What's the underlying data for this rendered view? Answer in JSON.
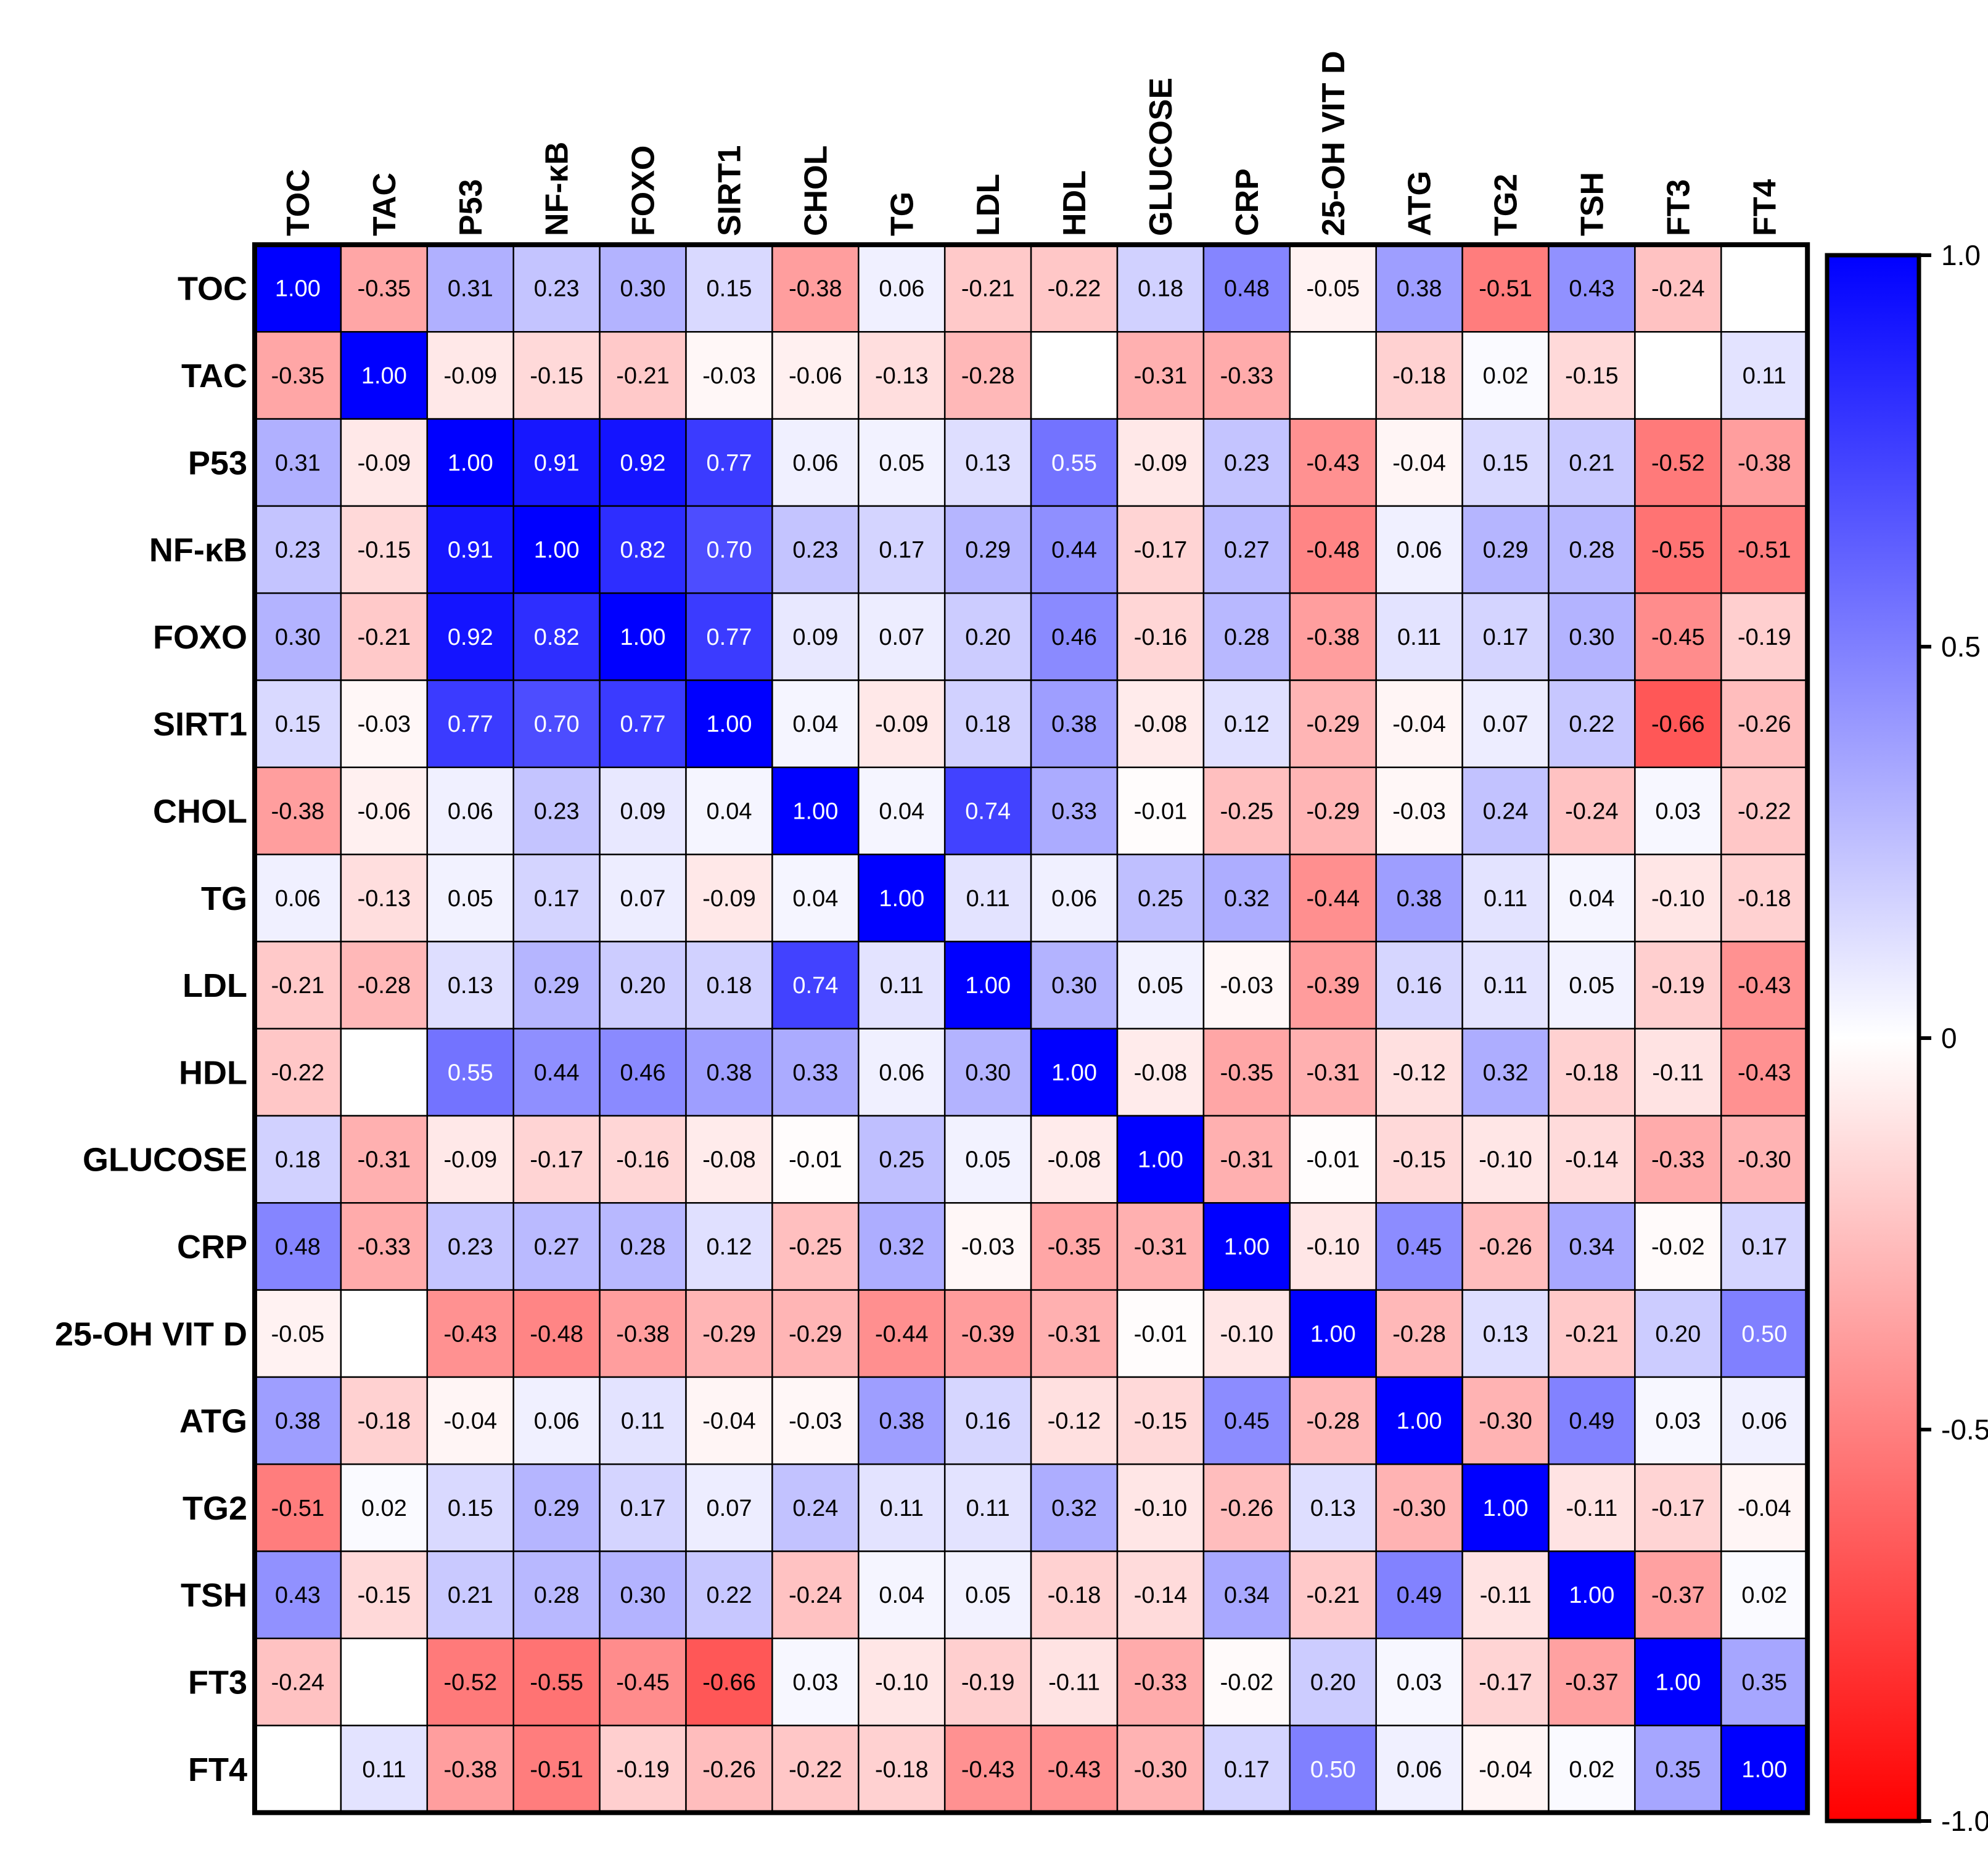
{
  "chart_data": {
    "type": "heatmap",
    "title": "",
    "columns": [
      "TOC",
      "TAC",
      "P53",
      "NF-κB",
      "FOXO",
      "SIRT1",
      "CHOL",
      "TG",
      "LDL",
      "HDL",
      "GLUCOSE",
      "CRP",
      "25-OH VIT D",
      "ATG",
      "TG2",
      "TSH",
      "FT3",
      "FT4"
    ],
    "rows": [
      "TOC",
      "TAC",
      "P53",
      "NF-κB",
      "FOXO",
      "SIRT1",
      "CHOL",
      "TG",
      "LDL",
      "HDL",
      "GLUCOSE",
      "CRP",
      "25-OH VIT D",
      "ATG",
      "TG2",
      "TSH",
      "FT3",
      "FT4"
    ],
    "values": [
      [
        "1.00",
        "-0.35",
        "0.31",
        "0.23",
        "0.30",
        "0.15",
        "-0.38",
        "0.06",
        "-0.21",
        "-0.22",
        "0.18",
        "0.48",
        "-0.05",
        "0.38",
        "-0.51",
        "0.43",
        "-0.24",
        ""
      ],
      [
        "-0.35",
        "1.00",
        "-0.09",
        "-0.15",
        "-0.21",
        "-0.03",
        "-0.06",
        "-0.13",
        "-0.28",
        "",
        "-0.31",
        "-0.33",
        "",
        "-0.18",
        "0.02",
        "-0.15",
        "",
        "0.11"
      ],
      [
        "0.31",
        "-0.09",
        "1.00",
        "0.91",
        "0.92",
        "0.77",
        "0.06",
        "0.05",
        "0.13",
        "0.55",
        "-0.09",
        "0.23",
        "-0.43",
        "-0.04",
        "0.15",
        "0.21",
        "-0.52",
        "-0.38"
      ],
      [
        "0.23",
        "-0.15",
        "0.91",
        "1.00",
        "0.82",
        "0.70",
        "0.23",
        "0.17",
        "0.29",
        "0.44",
        "-0.17",
        "0.27",
        "-0.48",
        "0.06",
        "0.29",
        "0.28",
        "-0.55",
        "-0.51"
      ],
      [
        "0.30",
        "-0.21",
        "0.92",
        "0.82",
        "1.00",
        "0.77",
        "0.09",
        "0.07",
        "0.20",
        "0.46",
        "-0.16",
        "0.28",
        "-0.38",
        "0.11",
        "0.17",
        "0.30",
        "-0.45",
        "-0.19"
      ],
      [
        "0.15",
        "-0.03",
        "0.77",
        "0.70",
        "0.77",
        "1.00",
        "0.04",
        "-0.09",
        "0.18",
        "0.38",
        "-0.08",
        "0.12",
        "-0.29",
        "-0.04",
        "0.07",
        "0.22",
        "-0.66",
        "-0.26"
      ],
      [
        "-0.38",
        "-0.06",
        "0.06",
        "0.23",
        "0.09",
        "0.04",
        "1.00",
        "0.04",
        "0.74",
        "0.33",
        "-0.01",
        "-0.25",
        "-0.29",
        "-0.03",
        "0.24",
        "-0.24",
        "0.03",
        "-0.22"
      ],
      [
        "0.06",
        "-0.13",
        "0.05",
        "0.17",
        "0.07",
        "-0.09",
        "0.04",
        "1.00",
        "0.11",
        "0.06",
        "0.25",
        "0.32",
        "-0.44",
        "0.38",
        "0.11",
        "0.04",
        "-0.10",
        "-0.18"
      ],
      [
        "-0.21",
        "-0.28",
        "0.13",
        "0.29",
        "0.20",
        "0.18",
        "0.74",
        "0.11",
        "1.00",
        "0.30",
        "0.05",
        "-0.03",
        "-0.39",
        "0.16",
        "0.11",
        "0.05",
        "-0.19",
        "-0.43"
      ],
      [
        "-0.22",
        "",
        "0.55",
        "0.44",
        "0.46",
        "0.38",
        "0.33",
        "0.06",
        "0.30",
        "1.00",
        "-0.08",
        "-0.35",
        "-0.31",
        "-0.12",
        "0.32",
        "-0.18",
        "-0.11",
        "-0.43"
      ],
      [
        "0.18",
        "-0.31",
        "-0.09",
        "-0.17",
        "-0.16",
        "-0.08",
        "-0.01",
        "0.25",
        "0.05",
        "-0.08",
        "1.00",
        "-0.31",
        "-0.01",
        "-0.15",
        "-0.10",
        "-0.14",
        "-0.33",
        "-0.30"
      ],
      [
        "0.48",
        "-0.33",
        "0.23",
        "0.27",
        "0.28",
        "0.12",
        "-0.25",
        "0.32",
        "-0.03",
        "-0.35",
        "-0.31",
        "1.00",
        "-0.10",
        "0.45",
        "-0.26",
        "0.34",
        "-0.02",
        "0.17"
      ],
      [
        "-0.05",
        "",
        "-0.43",
        "-0.48",
        "-0.38",
        "-0.29",
        "-0.29",
        "-0.44",
        "-0.39",
        "-0.31",
        "-0.01",
        "-0.10",
        "1.00",
        "-0.28",
        "0.13",
        "-0.21",
        "0.20",
        "0.50"
      ],
      [
        "0.38",
        "-0.18",
        "-0.04",
        "0.06",
        "0.11",
        "-0.04",
        "-0.03",
        "0.38",
        "0.16",
        "-0.12",
        "-0.15",
        "0.45",
        "-0.28",
        "1.00",
        "-0.30",
        "0.49",
        "0.03",
        "0.06"
      ],
      [
        "-0.51",
        "0.02",
        "0.15",
        "0.29",
        "0.17",
        "0.07",
        "0.24",
        "0.11",
        "0.11",
        "0.32",
        "-0.10",
        "-0.26",
        "0.13",
        "-0.30",
        "1.00",
        "-0.11",
        "-0.17",
        "-0.04"
      ],
      [
        "0.43",
        "-0.15",
        "0.21",
        "0.28",
        "0.30",
        "0.22",
        "-0.24",
        "0.04",
        "0.05",
        "-0.18",
        "-0.14",
        "0.34",
        "-0.21",
        "0.49",
        "-0.11",
        "1.00",
        "-0.37",
        "0.02"
      ],
      [
        "-0.24",
        "",
        "-0.52",
        "-0.55",
        "-0.45",
        "-0.66",
        "0.03",
        "-0.10",
        "-0.19",
        "-0.11",
        "-0.33",
        "-0.02",
        "0.20",
        "0.03",
        "-0.17",
        "-0.37",
        "1.00",
        "0.35"
      ],
      [
        "",
        "0.11",
        "-0.38",
        "-0.51",
        "-0.19",
        "-0.26",
        "-0.22",
        "-0.18",
        "-0.43",
        "-0.43",
        "-0.30",
        "0.17",
        "0.50",
        "0.06",
        "-0.04",
        "0.02",
        "0.35",
        "1.00"
      ]
    ],
    "colorscale": {
      "min": -1.0,
      "max": 1.0,
      "negative_color": "#ff0000",
      "zero_color": "#ffffff",
      "positive_color": "#0000ff",
      "ticks": [
        "1.0",
        "0.5",
        "0",
        "-0.5",
        "-1.0"
      ]
    },
    "legend": "right"
  }
}
